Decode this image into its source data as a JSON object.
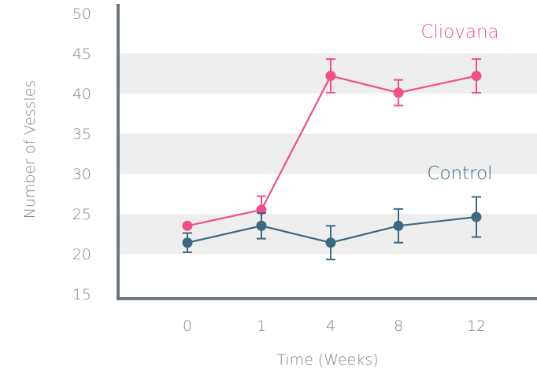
{
  "chart_data": {
    "type": "line",
    "xlabel": "Time (Weeks)",
    "ylabel": "Number of Vessles",
    "categories": [
      "0",
      "1",
      "4",
      "8",
      "12"
    ],
    "ylim": [
      15,
      50
    ],
    "yticks": [
      15,
      20,
      25,
      30,
      35,
      40,
      45,
      50
    ],
    "grid": "alternating horizontal bands",
    "series": [
      {
        "name": "Cliovana",
        "color": "#ef4f8b",
        "values": [
          23.5,
          25.5,
          42.2,
          40.1,
          42.2
        ],
        "error": [
          0.2,
          1.7,
          2.1,
          1.6,
          2.1
        ]
      },
      {
        "name": "Control",
        "color": "#3e6981",
        "values": [
          21.4,
          23.5,
          21.4,
          23.5,
          24.6
        ],
        "error": [
          1.2,
          1.6,
          2.1,
          2.1,
          2.5
        ]
      }
    ]
  }
}
